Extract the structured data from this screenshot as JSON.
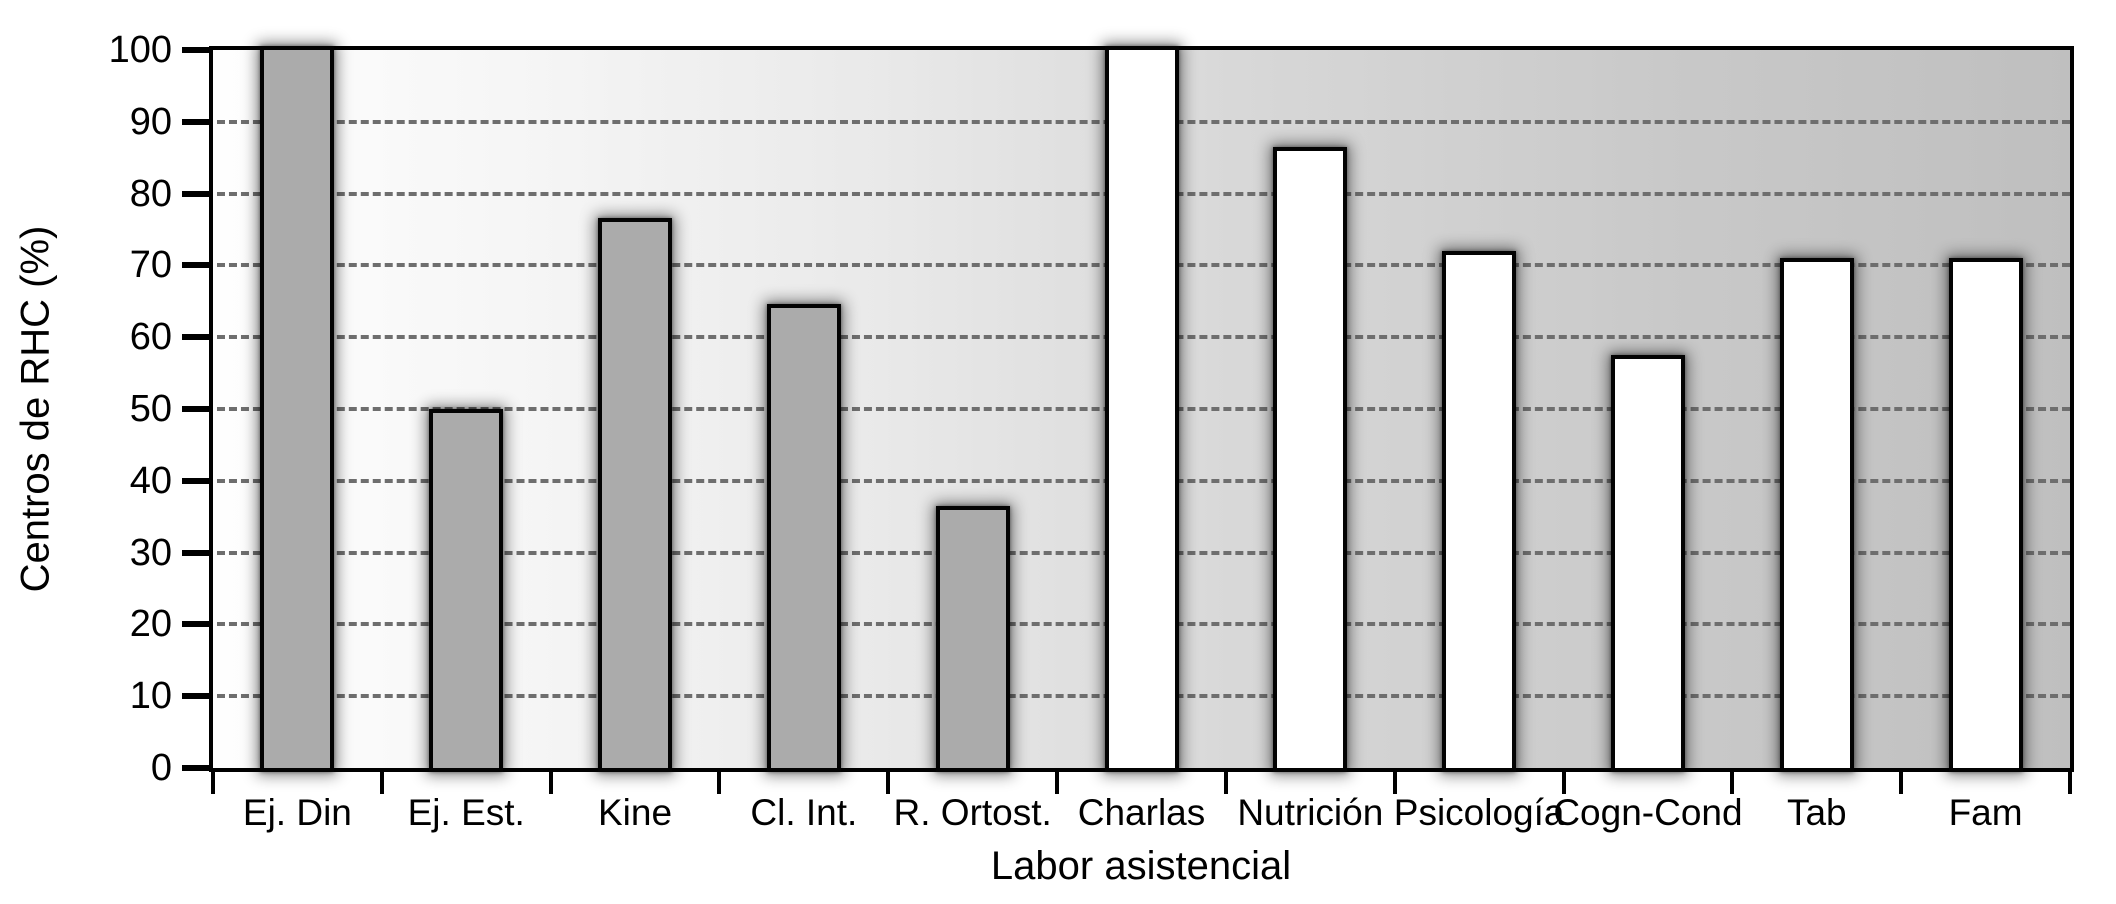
{
  "figure": {
    "background": "#ffffff"
  },
  "chart_data": {
    "type": "bar",
    "title": "",
    "xlabel": "Labor asistencial",
    "ylabel": "Centros de RHC (%)",
    "ylim": [
      0,
      100
    ],
    "yticks": [
      0,
      10,
      20,
      30,
      40,
      50,
      60,
      70,
      80,
      90,
      100
    ],
    "gridlines_at": [
      10,
      20,
      30,
      40,
      50,
      60,
      70,
      80,
      90
    ],
    "grid_style": "horizontal dashed",
    "legend": "none",
    "categories": [
      "Ej. Din",
      "Ej. Est.",
      "Kine",
      "Cl. Int.",
      "R. Ortost.",
      "Charlas",
      "Nutrición",
      "Psicología",
      "Cogn-Cond",
      "Tab",
      "Fam"
    ],
    "values": [
      100,
      49.5,
      76,
      64,
      36,
      100,
      86,
      71.5,
      57,
      70.5,
      70.5
    ],
    "bar_fills": [
      "#ababab",
      "#ababab",
      "#ababab",
      "#ababab",
      "#ababab",
      "#ffffff",
      "#ffffff",
      "#ffffff",
      "#ffffff",
      "#ffffff",
      "#ffffff"
    ],
    "series": [
      {
        "name": "gray-bars",
        "fill": "#ababab",
        "categories": [
          "Ej. Din",
          "Ej. Est.",
          "Kine",
          "Cl. Int.",
          "R. Ortost."
        ],
        "values": [
          100,
          49.5,
          76,
          64,
          36
        ]
      },
      {
        "name": "white-bars",
        "fill": "#ffffff",
        "categories": [
          "Charlas",
          "Nutrición",
          "Psicología",
          "Cogn-Cond",
          "Tab",
          "Fam"
        ],
        "values": [
          100,
          86,
          71.5,
          57,
          70.5,
          70.5
        ]
      }
    ],
    "colors": {
      "bar_border": "#030303",
      "bar_glow": "rgba(0,0,0,0.5)",
      "grid": "#6e6e6e",
      "frame": "#000000",
      "plot_bg_left": "#fefefe",
      "plot_bg_right": "#bfbfbf",
      "text": "#000000"
    }
  }
}
